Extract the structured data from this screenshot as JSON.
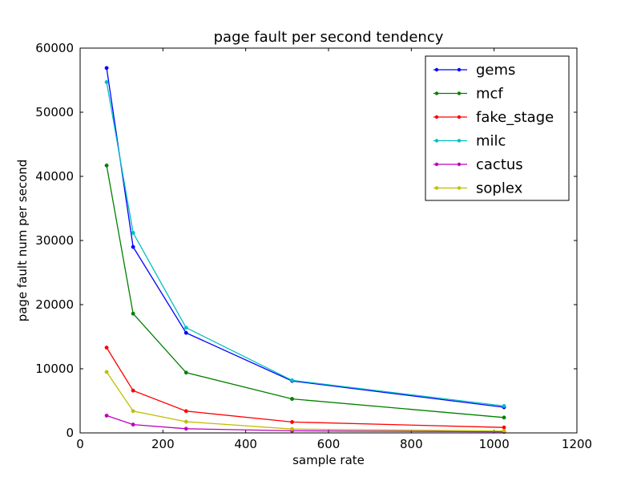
{
  "chart_data": {
    "type": "line",
    "title": "page fault per second tendency",
    "xlabel": "sample rate",
    "ylabel": "page fault num per second",
    "xlim": [
      0,
      1200
    ],
    "ylim": [
      0,
      60000
    ],
    "xticks": [
      0,
      200,
      400,
      600,
      800,
      1000,
      1200
    ],
    "yticks": [
      0,
      10000,
      20000,
      30000,
      40000,
      50000,
      60000
    ],
    "xtick_labels": [
      "0",
      "200",
      "400",
      "600",
      "800",
      "1000",
      "1200"
    ],
    "ytick_labels": [
      "0",
      "10000",
      "20000",
      "30000",
      "40000",
      "50000",
      "60000"
    ],
    "grid": false,
    "legend_position": "top-right",
    "x": [
      64,
      128,
      256,
      512,
      1024
    ],
    "series": [
      {
        "name": "gems",
        "color": "#0000ff",
        "values": [
          56900,
          29000,
          15600,
          8100,
          4000
        ]
      },
      {
        "name": "mcf",
        "color": "#008000",
        "values": [
          41700,
          18600,
          9400,
          5300,
          2400
        ]
      },
      {
        "name": "fake_stage",
        "color": "#ff0000",
        "values": [
          13300,
          6600,
          3400,
          1700,
          850
        ]
      },
      {
        "name": "milc",
        "color": "#00bfbf",
        "values": [
          54700,
          31200,
          16400,
          8200,
          4200
        ]
      },
      {
        "name": "cactus",
        "color": "#bf00bf",
        "values": [
          2700,
          1300,
          650,
          330,
          170
        ]
      },
      {
        "name": "soplex",
        "color": "#bfbf00",
        "values": [
          9500,
          3400,
          1750,
          600,
          300
        ]
      }
    ]
  }
}
